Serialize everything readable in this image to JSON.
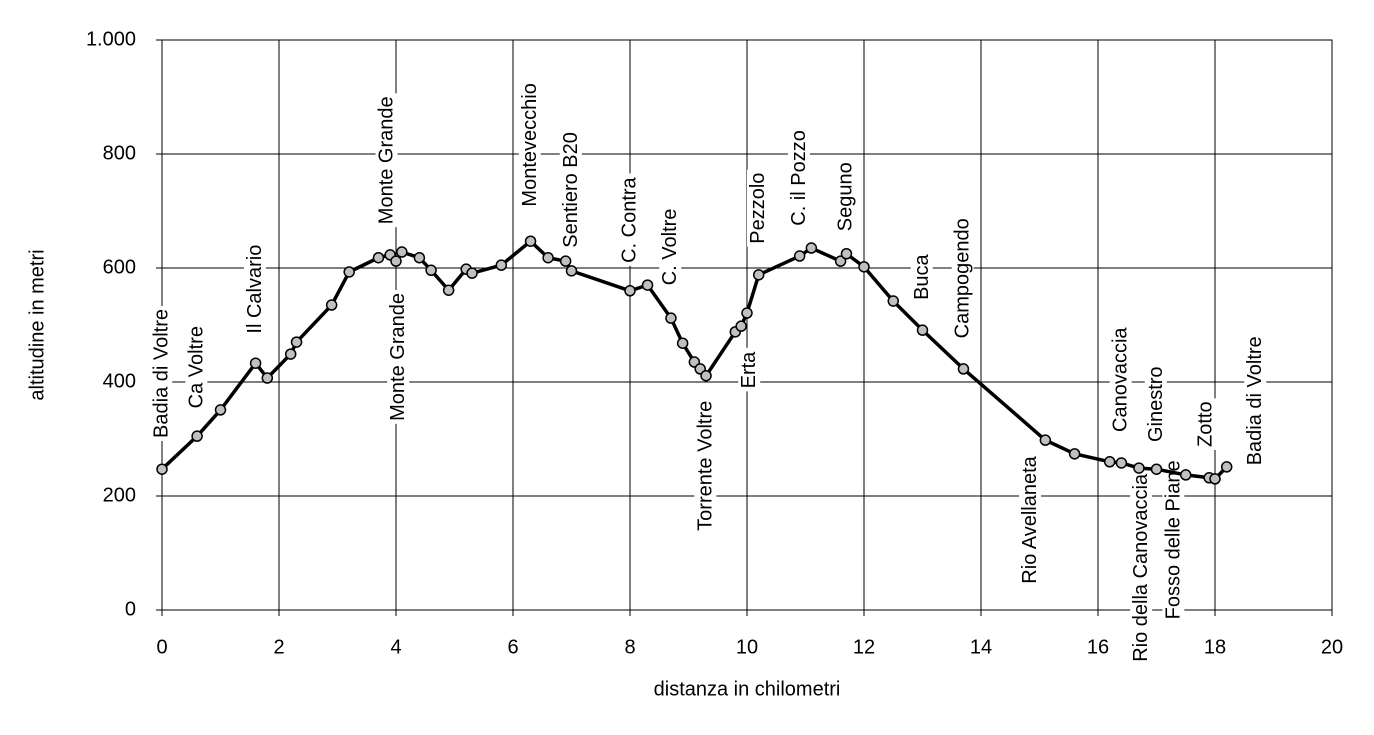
{
  "chart_data": {
    "type": "line",
    "xlabel": "distanza in chilometri",
    "ylabel": "altitudine  in metri",
    "x": [
      0,
      0.6,
      1.0,
      1.6,
      1.8,
      2.2,
      2.3,
      2.9,
      3.2,
      3.7,
      3.9,
      4.0,
      4.1,
      4.4,
      4.6,
      4.9,
      5.2,
      5.3,
      5.8,
      6.3,
      6.6,
      6.9,
      7.0,
      8.0,
      8.3,
      8.7,
      8.9,
      9.1,
      9.2,
      9.3,
      9.8,
      9.9,
      10.0,
      10.2,
      10.9,
      11.1,
      11.6,
      11.7,
      12.0,
      12.5,
      13.0,
      13.7,
      15.1,
      15.6,
      16.2,
      16.4,
      16.7,
      17.0,
      17.5,
      17.9,
      18.0,
      18.2
    ],
    "values": [
      247,
      305,
      351,
      433,
      407,
      449,
      470,
      535,
      593,
      618,
      623,
      612,
      628,
      618,
      596,
      561,
      598,
      591,
      605,
      647,
      618,
      612,
      595,
      560,
      570,
      512,
      468,
      435,
      423,
      411,
      488,
      498,
      521,
      588,
      621,
      635,
      612,
      625,
      602,
      542,
      491,
      423,
      298,
      274,
      260,
      258,
      249,
      247,
      237,
      232,
      230,
      251
    ],
    "color": "#000000",
    "marker_color": "#c0c0c0",
    "xlim": [
      0,
      20
    ],
    "xticks": [
      0,
      2,
      4,
      6,
      8,
      10,
      12,
      14,
      16,
      18,
      20
    ],
    "ylim": [
      0,
      1000
    ],
    "yticks": [
      0,
      200,
      400,
      600,
      800,
      {
        "value": 1000,
        "label": "1.000"
      }
    ],
    "grid": true,
    "annotations": [
      {
        "text": "Badia di Voltre",
        "x": 0,
        "y": 415
      },
      {
        "text": "Ca Voltre",
        "x": 0.6,
        "y": 426
      },
      {
        "text": "Il Calvario",
        "x": 1.6,
        "y": 563
      },
      {
        "text": "Monte Grande",
        "x": 3.85,
        "y": 789
      },
      {
        "text": "Monte Grande",
        "x": 4.05,
        "y": 444
      },
      {
        "text": "Montevecchio",
        "x": 6.3,
        "y": 816
      },
      {
        "text": "Sentiero B20",
        "x": 7.0,
        "y": 737
      },
      {
        "text": "C. Contra",
        "x": 8.0,
        "y": 684
      },
      {
        "text": "C. Voltre",
        "x": 8.7,
        "y": 637
      },
      {
        "text": "Torrente Voltre",
        "x": 9.3,
        "y": 253
      },
      {
        "text": "Erta",
        "x": 10.05,
        "y": 421
      },
      {
        "text": "Pezzolo",
        "x": 10.2,
        "y": 705
      },
      {
        "text": "C. il Pozzo",
        "x": 10.9,
        "y": 758
      },
      {
        "text": "Seguno",
        "x": 11.7,
        "y": 725
      },
      {
        "text": "Buca",
        "x": 13.0,
        "y": 584
      },
      {
        "text": "Campogendo",
        "x": 13.7,
        "y": 582
      },
      {
        "text": "Rio Avellaneta",
        "x": 14.85,
        "y": 158
      },
      {
        "text": "Canovaccia",
        "x": 16.4,
        "y": 404
      },
      {
        "text": "Rio della Canovaccia",
        "x": 16.75,
        "y": 74
      },
      {
        "text": "Ginestro",
        "x": 17.0,
        "y": 361
      },
      {
        "text": "Fosso delle Piane",
        "x": 17.3,
        "y": 123
      },
      {
        "text": "Zotto",
        "x": 17.85,
        "y": 326
      },
      {
        "text": "Badia di Voltre",
        "x": 18.7,
        "y": 367
      }
    ]
  }
}
